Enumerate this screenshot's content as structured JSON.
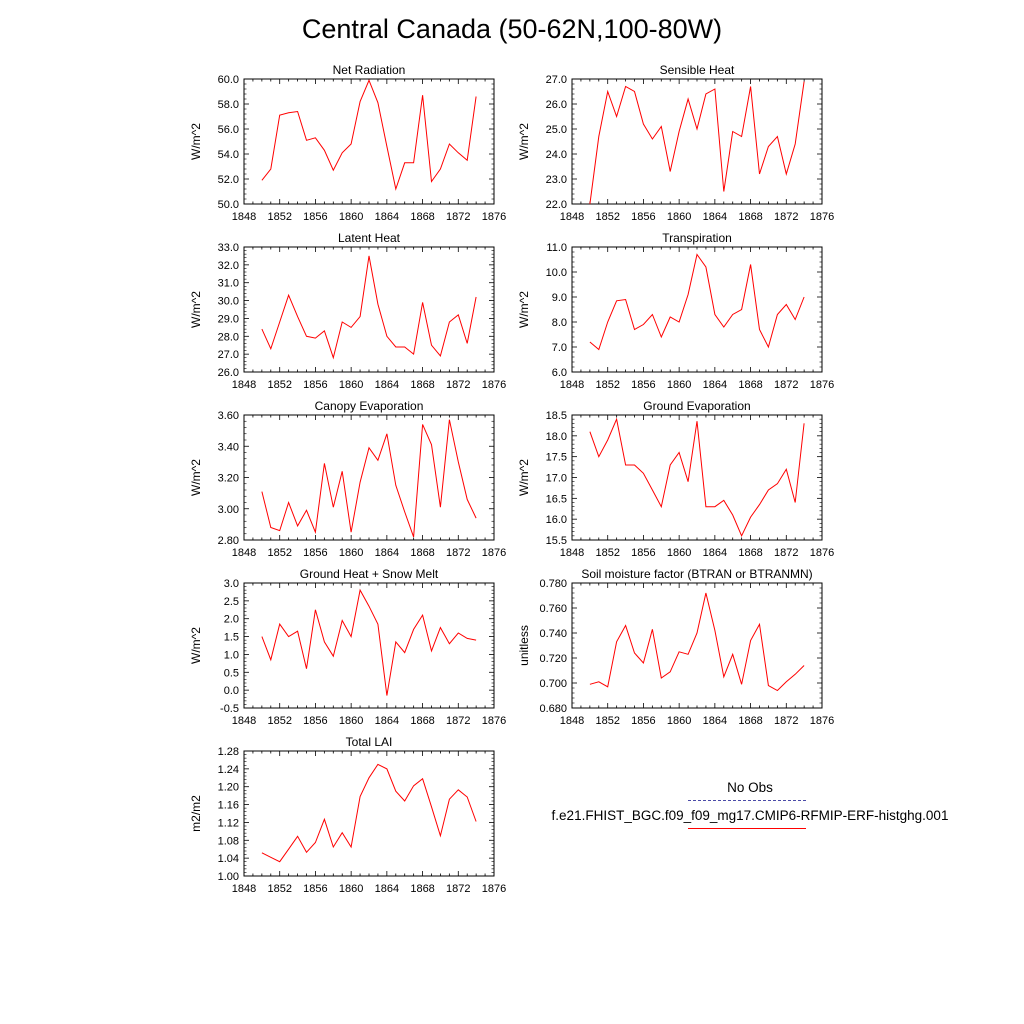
{
  "title": "Central Canada (50-62N,100-80W)",
  "legend": {
    "obs_label": "No Obs",
    "obs_color": "#4a4aa8",
    "model_label": "f.e21.FHIST_BGC.f09_f09_mg17.CMIP6-RFMIP-ERF-histghg.001",
    "model_color": "#ff0000"
  },
  "chart_data": [
    {
      "type": "line",
      "title": "Net Radiation",
      "ylabel": "W/m^2",
      "xlim": [
        1848,
        1876
      ],
      "ylim": [
        50,
        60
      ],
      "xticks": [
        1848,
        1852,
        1856,
        1860,
        1864,
        1868,
        1872,
        1876
      ],
      "yticks": [
        "50.0",
        "52.0",
        "54.0",
        "56.0",
        "58.0",
        "60.0"
      ],
      "x": [
        1850,
        1851,
        1852,
        1853,
        1854,
        1855,
        1856,
        1857,
        1858,
        1859,
        1860,
        1861,
        1862,
        1863,
        1864,
        1865,
        1866,
        1867,
        1868,
        1869,
        1870,
        1871,
        1872,
        1873,
        1874
      ],
      "y": [
        51.9,
        52.8,
        57.1,
        57.3,
        57.4,
        55.1,
        55.3,
        54.3,
        52.7,
        54.1,
        54.8,
        58.2,
        59.9,
        58.1,
        54.6,
        51.2,
        53.3,
        53.3,
        58.7,
        51.8,
        52.8,
        54.8,
        54.1,
        53.5,
        58.6
      ]
    },
    {
      "type": "line",
      "title": "Sensible Heat",
      "ylabel": "W/m^2",
      "xlim": [
        1848,
        1876
      ],
      "ylim": [
        22,
        27
      ],
      "xticks": [
        1848,
        1852,
        1856,
        1860,
        1864,
        1868,
        1872,
        1876
      ],
      "yticks": [
        "22.0",
        "23.0",
        "24.0",
        "25.0",
        "26.0",
        "27.0"
      ],
      "x": [
        1850,
        1851,
        1852,
        1853,
        1854,
        1855,
        1856,
        1857,
        1858,
        1859,
        1860,
        1861,
        1862,
        1863,
        1864,
        1865,
        1866,
        1867,
        1868,
        1869,
        1870,
        1871,
        1872,
        1873,
        1874
      ],
      "y": [
        22.0,
        24.7,
        26.5,
        25.5,
        26.7,
        26.5,
        25.2,
        24.6,
        25.1,
        23.3,
        24.9,
        26.2,
        25.0,
        26.4,
        26.6,
        22.5,
        24.9,
        24.7,
        26.7,
        23.2,
        24.3,
        24.7,
        23.2,
        24.4,
        26.9
      ]
    },
    {
      "type": "line",
      "title": "Latent Heat",
      "ylabel": "W/m^2",
      "xlim": [
        1848,
        1876
      ],
      "ylim": [
        26,
        33
      ],
      "xticks": [
        1848,
        1852,
        1856,
        1860,
        1864,
        1868,
        1872,
        1876
      ],
      "yticks": [
        "26.0",
        "27.0",
        "28.0",
        "29.0",
        "30.0",
        "31.0",
        "32.0",
        "33.0"
      ],
      "x": [
        1850,
        1851,
        1852,
        1853,
        1854,
        1855,
        1856,
        1857,
        1858,
        1859,
        1860,
        1861,
        1862,
        1863,
        1864,
        1865,
        1866,
        1867,
        1868,
        1869,
        1870,
        1871,
        1872,
        1873,
        1874
      ],
      "y": [
        28.4,
        27.3,
        28.8,
        30.3,
        29.1,
        28.0,
        27.9,
        28.3,
        26.8,
        28.8,
        28.5,
        29.1,
        32.5,
        29.8,
        28.0,
        27.4,
        27.4,
        27.0,
        29.9,
        27.5,
        26.9,
        28.8,
        29.2,
        27.6,
        30.2
      ]
    },
    {
      "type": "line",
      "title": "Transpiration",
      "ylabel": "W/m^2",
      "xlim": [
        1848,
        1876
      ],
      "ylim": [
        6,
        11
      ],
      "xticks": [
        1848,
        1852,
        1856,
        1860,
        1864,
        1868,
        1872,
        1876
      ],
      "yticks": [
        "6.0",
        "7.0",
        "8.0",
        "9.0",
        "10.0",
        "11.0"
      ],
      "x": [
        1850,
        1851,
        1852,
        1853,
        1854,
        1855,
        1856,
        1857,
        1858,
        1859,
        1860,
        1861,
        1862,
        1863,
        1864,
        1865,
        1866,
        1867,
        1868,
        1869,
        1870,
        1871,
        1872,
        1873,
        1874
      ],
      "y": [
        7.2,
        6.9,
        8.0,
        8.85,
        8.9,
        7.7,
        7.9,
        8.3,
        7.4,
        8.2,
        8.0,
        9.1,
        10.7,
        10.2,
        8.3,
        7.8,
        8.3,
        8.5,
        10.3,
        7.7,
        7.0,
        8.3,
        8.7,
        8.1,
        9.0
      ]
    },
    {
      "type": "line",
      "title": "Canopy Evaporation",
      "ylabel": "W/m^2",
      "xlim": [
        1848,
        1876
      ],
      "ylim": [
        2.8,
        3.6
      ],
      "xticks": [
        1848,
        1852,
        1856,
        1860,
        1864,
        1868,
        1872,
        1876
      ],
      "yticks": [
        "2.80",
        "3.00",
        "3.20",
        "3.40",
        "3.60"
      ],
      "x": [
        1850,
        1851,
        1852,
        1853,
        1854,
        1855,
        1856,
        1857,
        1858,
        1859,
        1860,
        1861,
        1862,
        1863,
        1864,
        1865,
        1866,
        1867,
        1868,
        1869,
        1870,
        1871,
        1872,
        1873,
        1874
      ],
      "y": [
        3.11,
        2.88,
        2.86,
        3.04,
        2.89,
        2.99,
        2.85,
        3.29,
        3.01,
        3.24,
        2.85,
        3.17,
        3.39,
        3.31,
        3.48,
        3.15,
        2.98,
        2.82,
        3.54,
        3.41,
        3.01,
        3.57,
        3.3,
        3.06,
        2.94
      ]
    },
    {
      "type": "line",
      "title": "Ground Evaporation",
      "ylabel": "W/m^2",
      "xlim": [
        1848,
        1876
      ],
      "ylim": [
        15.5,
        18.5
      ],
      "xticks": [
        1848,
        1852,
        1856,
        1860,
        1864,
        1868,
        1872,
        1876
      ],
      "yticks": [
        "15.5",
        "16.0",
        "16.5",
        "17.0",
        "17.5",
        "18.0",
        "18.5"
      ],
      "x": [
        1850,
        1851,
        1852,
        1853,
        1854,
        1855,
        1856,
        1857,
        1858,
        1859,
        1860,
        1861,
        1862,
        1863,
        1864,
        1865,
        1866,
        1867,
        1868,
        1869,
        1870,
        1871,
        1872,
        1873,
        1874
      ],
      "y": [
        18.1,
        17.5,
        17.9,
        18.4,
        17.3,
        17.3,
        17.1,
        16.7,
        16.3,
        17.3,
        17.6,
        16.9,
        18.35,
        16.3,
        16.3,
        16.45,
        16.1,
        15.6,
        16.05,
        16.35,
        16.7,
        16.85,
        17.2,
        16.4,
        18.3
      ]
    },
    {
      "type": "line",
      "title": "Ground Heat + Snow Melt",
      "ylabel": "W/m^2",
      "xlim": [
        1848,
        1876
      ],
      "ylim": [
        -0.5,
        3.0
      ],
      "xticks": [
        1848,
        1852,
        1856,
        1860,
        1864,
        1868,
        1872,
        1876
      ],
      "yticks": [
        "-0.5",
        "0.0",
        "0.5",
        "1.0",
        "1.5",
        "2.0",
        "2.5",
        "3.0"
      ],
      "x": [
        1850,
        1851,
        1852,
        1853,
        1854,
        1855,
        1856,
        1857,
        1858,
        1859,
        1860,
        1861,
        1862,
        1863,
        1864,
        1865,
        1866,
        1867,
        1868,
        1869,
        1870,
        1871,
        1872,
        1873,
        1874
      ],
      "y": [
        1.5,
        0.85,
        1.85,
        1.5,
        1.65,
        0.6,
        2.25,
        1.35,
        0.95,
        1.95,
        1.5,
        2.8,
        2.35,
        1.85,
        -0.15,
        1.35,
        1.05,
        1.7,
        2.1,
        1.1,
        1.75,
        1.3,
        1.6,
        1.45,
        1.4
      ]
    },
    {
      "type": "line",
      "title": "Soil moisture factor (BTRAN or BTRANMN)",
      "ylabel": "unitless",
      "xlim": [
        1848,
        1876
      ],
      "ylim": [
        0.68,
        0.78
      ],
      "xticks": [
        1848,
        1852,
        1856,
        1860,
        1864,
        1868,
        1872,
        1876
      ],
      "yticks": [
        "0.680",
        "0.700",
        "0.720",
        "0.740",
        "0.760",
        "0.780"
      ],
      "x": [
        1850,
        1851,
        1852,
        1853,
        1854,
        1855,
        1856,
        1857,
        1858,
        1859,
        1860,
        1861,
        1862,
        1863,
        1864,
        1865,
        1866,
        1867,
        1868,
        1869,
        1870,
        1871,
        1872,
        1873,
        1874
      ],
      "y": [
        0.699,
        0.701,
        0.697,
        0.733,
        0.746,
        0.724,
        0.716,
        0.743,
        0.704,
        0.709,
        0.725,
        0.723,
        0.74,
        0.772,
        0.742,
        0.705,
        0.723,
        0.699,
        0.734,
        0.747,
        0.698,
        0.694,
        0.701,
        0.707,
        0.714
      ]
    },
    {
      "type": "line",
      "title": "Total LAI",
      "ylabel": "m2/m2",
      "xlim": [
        1848,
        1876
      ],
      "ylim": [
        1.0,
        1.28
      ],
      "xticks": [
        1848,
        1852,
        1856,
        1860,
        1864,
        1868,
        1872,
        1876
      ],
      "yticks": [
        "1.00",
        "1.04",
        "1.08",
        "1.12",
        "1.16",
        "1.20",
        "1.24",
        "1.28"
      ],
      "x": [
        1850,
        1851,
        1852,
        1853,
        1854,
        1855,
        1856,
        1857,
        1858,
        1859,
        1860,
        1861,
        1862,
        1863,
        1864,
        1865,
        1866,
        1867,
        1868,
        1869,
        1870,
        1871,
        1872,
        1873,
        1874
      ],
      "y": [
        1.052,
        1.042,
        1.032,
        1.06,
        1.089,
        1.053,
        1.075,
        1.127,
        1.065,
        1.097,
        1.065,
        1.178,
        1.22,
        1.25,
        1.24,
        1.19,
        1.168,
        1.202,
        1.218,
        1.155,
        1.09,
        1.172,
        1.193,
        1.177,
        1.122
      ]
    }
  ]
}
